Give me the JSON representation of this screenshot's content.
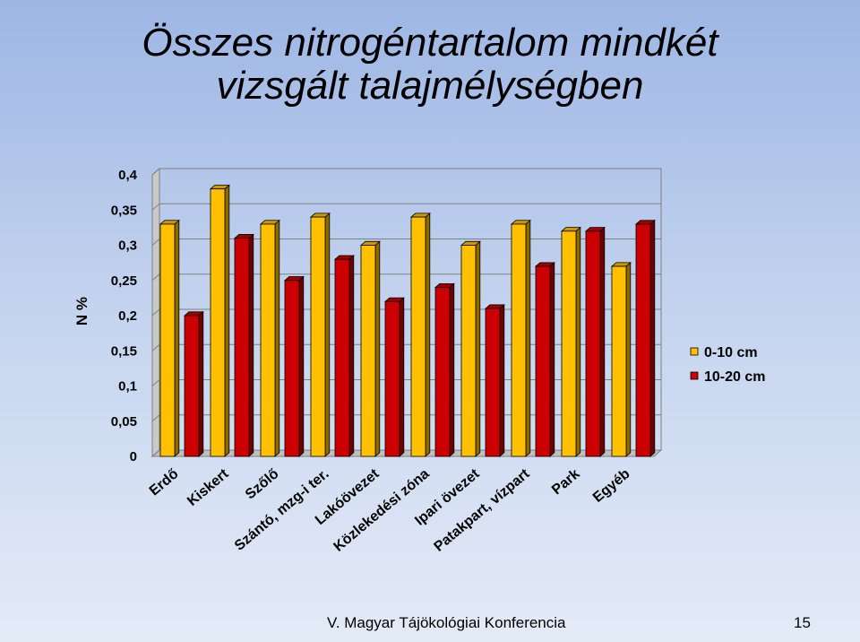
{
  "slide": {
    "title_line1": "Összes nitrogéntartalom mindkét",
    "title_line2": "vizsgált talajmélységben",
    "footer_text": "V. Magyar Tájökológiai Konferencia",
    "page_number": "15"
  },
  "chart_data": {
    "type": "bar",
    "categories": [
      "Erdő",
      "Kiskert",
      "Szőlő",
      "Szántó, mzg-i ter.",
      "Lakóövezet",
      "Közlekedési zóna",
      "Ipari övezet",
      "Patakpart, vízpart",
      "Park",
      "Egyéb"
    ],
    "series": [
      {
        "name": "0-10 cm",
        "color": "#ffc000",
        "values": [
          0.33,
          0.38,
          0.33,
          0.34,
          0.3,
          0.34,
          0.3,
          0.33,
          0.32,
          0.27
        ]
      },
      {
        "name": "10-20 cm",
        "color": "#cc0000",
        "values": [
          0.2,
          0.31,
          0.25,
          0.28,
          0.22,
          0.24,
          0.21,
          0.27,
          0.32,
          0.33
        ]
      }
    ],
    "title": "",
    "xlabel": "",
    "ylabel": "N %",
    "ylim": [
      0,
      0.4
    ],
    "yticks": [
      "0",
      "0,05",
      "0,1",
      "0,15",
      "0,2",
      "0,25",
      "0,3",
      "0,35",
      "0,4"
    ],
    "grid": true,
    "legend_position": "right",
    "style": "3d-bar"
  }
}
